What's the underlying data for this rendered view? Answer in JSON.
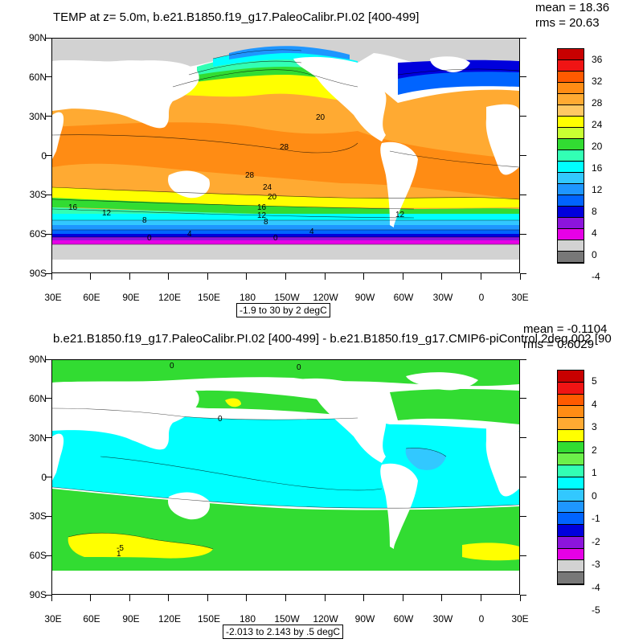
{
  "panels": [
    {
      "id": "top",
      "title": "TEMP at z=   5.0m, b.e21.B1850.f19_g17.PaleoCalibr.PI.02 [400-499]",
      "mean": "mean = 18.36",
      "rms": "rms = 20.63",
      "subtitle": "-1.9 to 30 by 2 degC",
      "colorbar_labels": [
        "36",
        "32",
        "28",
        "24",
        "20",
        "16",
        "12",
        "8",
        "4",
        "0",
        "-4"
      ],
      "colorbar_colors": [
        "#c80000",
        "#f01414",
        "#ff5a00",
        "#ff8c14",
        "#ffaa32",
        "#ffc864",
        "#ffff00",
        "#c8ff32",
        "#32dc32",
        "#32ffb4",
        "#00ffff",
        "#32c8ff",
        "#1e96ff",
        "#0064ff",
        "#0000dc",
        "#8c14dc",
        "#e600e6",
        "#d2d2d2",
        "#787878"
      ],
      "contour_labels": [
        "20",
        "28",
        "28",
        "24",
        "20",
        "16",
        "12",
        "16",
        "8",
        "12",
        "8",
        "4",
        "0",
        "0",
        "4",
        "12"
      ]
    },
    {
      "id": "bottom",
      "title": "b.e21.B1850.f19_g17.PaleoCalibr.PI.02 [400-499] - b.e21.B1850.f19_g17.CMIP6-piControl.2deg.002 [90",
      "mean": "mean = -0.1104",
      "rms": "rms = 0.6029",
      "subtitle": "-2.013 to 2.143 by .5 degC",
      "colorbar_labels": [
        "5",
        "4",
        "3",
        "2",
        "1",
        "0",
        "-1",
        "-2",
        "-3",
        "-4",
        "-5"
      ],
      "colorbar_colors": [
        "#c80000",
        "#f01414",
        "#ff5a00",
        "#ff8c14",
        "#ffaa32",
        "#ffff00",
        "#32dc32",
        "#6cf04a",
        "#32ffb4",
        "#00ffff",
        "#32c8ff",
        "#1e96ff",
        "#0064ff",
        "#0000dc",
        "#8c14dc",
        "#e600e6",
        "#d2d2d2",
        "#787878"
      ],
      "contour_labels": [
        "0",
        "0",
        "0",
        "-5",
        "1"
      ]
    }
  ],
  "map": {
    "lat_labels": [
      "90N",
      "60N",
      "30N",
      "0",
      "30S",
      "60S",
      "90S"
    ],
    "lon_labels": [
      "30E",
      "60E",
      "90E",
      "120E",
      "150E",
      "180",
      "150W",
      "120W",
      "90W",
      "60W",
      "30W",
      "0",
      "30E"
    ],
    "lat_values": [
      90,
      60,
      30,
      0,
      -30,
      -60,
      -90
    ],
    "lon_values": [
      30,
      60,
      90,
      120,
      150,
      180,
      210,
      240,
      270,
      300,
      330,
      360,
      390
    ]
  }
}
